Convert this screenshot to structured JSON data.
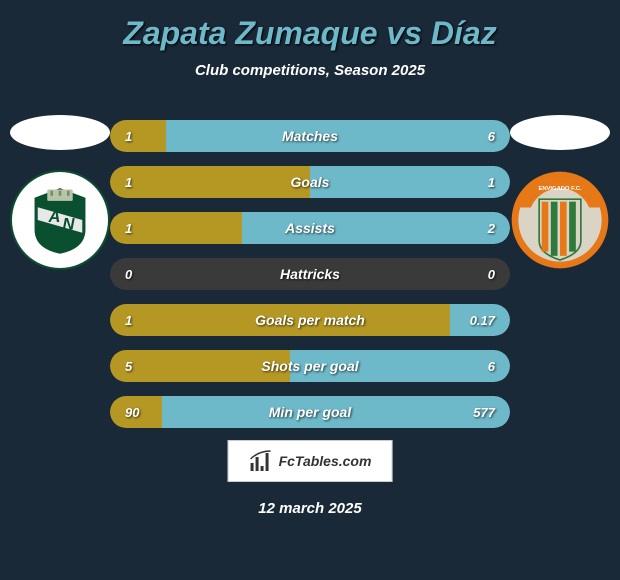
{
  "title": "Zapata Zumaque vs Díaz",
  "subtitle": "Club competitions, Season 2025",
  "date": "12 march 2025",
  "logo_text": "FcTables.com",
  "colors": {
    "background": "#1a2938",
    "title": "#6eb9c9",
    "bar_left": "#b59824",
    "bar_right": "#6eb9c9",
    "bar_bg": "#3a3a3a",
    "crest_left_primary": "#0a5030",
    "crest_left_band": "#e8e8e8",
    "crest_right_orange": "#e67817",
    "crest_right_green": "#2d7a3a",
    "crest_right_bg": "#d9d4c5"
  },
  "stats": [
    {
      "label": "Matches",
      "left_val": "1",
      "right_val": "6",
      "left_pct": 14,
      "right_pct": 86
    },
    {
      "label": "Goals",
      "left_val": "1",
      "right_val": "1",
      "left_pct": 50,
      "right_pct": 50
    },
    {
      "label": "Assists",
      "left_val": "1",
      "right_val": "2",
      "left_pct": 33,
      "right_pct": 67
    },
    {
      "label": "Hattricks",
      "left_val": "0",
      "right_val": "0",
      "left_pct": 0,
      "right_pct": 0
    },
    {
      "label": "Goals per match",
      "left_val": "1",
      "right_val": "0.17",
      "left_pct": 85,
      "right_pct": 15
    },
    {
      "label": "Shots per goal",
      "left_val": "5",
      "right_val": "6",
      "left_pct": 45,
      "right_pct": 55
    },
    {
      "label": "Min per goal",
      "left_val": "90",
      "right_val": "577",
      "left_pct": 13,
      "right_pct": 87
    }
  ]
}
